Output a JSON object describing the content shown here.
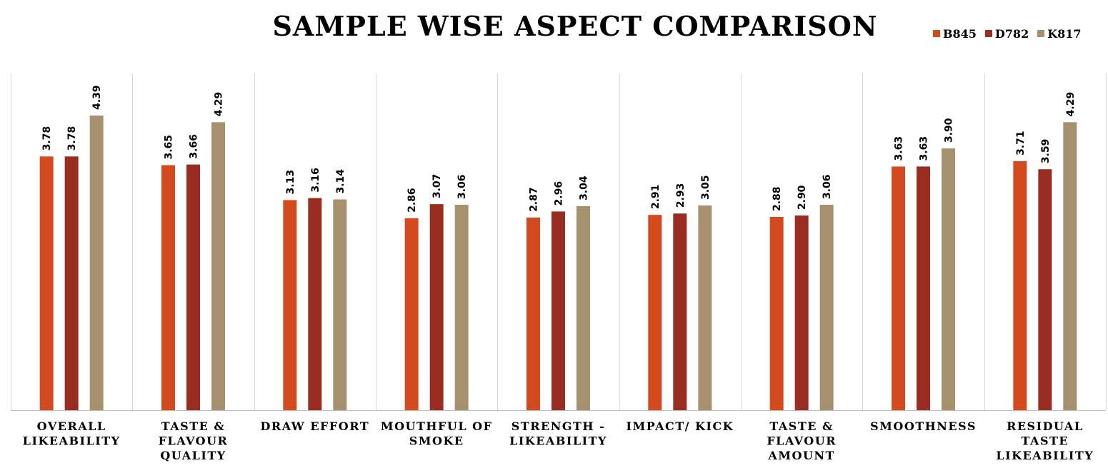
{
  "chart_data": {
    "type": "bar",
    "title": "SAMPLE WISE ASPECT COMPARISON",
    "categories": [
      [
        "OVERALL",
        "LIKEABILITY"
      ],
      [
        "TASTE &",
        "FLAVOUR",
        "QUALITY"
      ],
      [
        "DRAW EFFORT"
      ],
      [
        "MOUTHFUL OF",
        "SMOKE"
      ],
      [
        "STRENGTH -",
        "LIKEABILITY"
      ],
      [
        "IMPACT/ KICK"
      ],
      [
        "TASTE &",
        "FLAVOUR",
        "AMOUNT"
      ],
      [
        "SMOOTHNESS"
      ],
      [
        "RESIDUAL",
        "TASTE",
        "LIKEABILITY"
      ]
    ],
    "series": [
      {
        "name": "B845",
        "color": "#D34A1E",
        "values": [
          3.78,
          3.65,
          3.13,
          2.86,
          2.87,
          2.91,
          2.88,
          3.63,
          3.71
        ]
      },
      {
        "name": "D782",
        "color": "#9A2D22",
        "values": [
          3.78,
          3.66,
          3.16,
          3.07,
          2.96,
          2.93,
          2.9,
          3.63,
          3.59
        ]
      },
      {
        "name": "K817",
        "color": "#A6906D",
        "values": [
          4.39,
          4.29,
          3.14,
          3.06,
          3.04,
          3.05,
          3.06,
          3.9,
          4.29
        ]
      }
    ],
    "value_labels": [
      [
        "3.78",
        "3.65",
        "3.13",
        "2.86",
        "2.87",
        "2.91",
        "2.88",
        "3.63",
        "3.71"
      ],
      [
        "3.78",
        "3.66",
        "3.16",
        "3.07",
        "2.96",
        "2.93",
        "2.90",
        "3.63",
        "3.59"
      ],
      [
        "4.39",
        "4.29",
        "3.14",
        "3.06",
        "3.04",
        "3.05",
        "3.06",
        "3.90",
        "4.29"
      ]
    ],
    "ylim": [
      0,
      5
    ],
    "legend_position": "top-right",
    "grid": "vertical category dividers"
  }
}
